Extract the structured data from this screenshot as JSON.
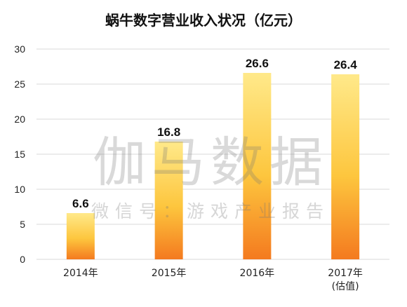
{
  "chart_data": {
    "type": "bar",
    "title": "蜗牛数字营业收入状况（亿元）",
    "categories": [
      "2014年",
      "2015年",
      "2016年",
      "2017年"
    ],
    "category_sublabels": [
      "",
      "",
      "",
      "(估值)"
    ],
    "values": [
      6.6,
      16.8,
      26.6,
      26.4
    ],
    "data_labels": [
      "6.6",
      "16.8",
      "26.6",
      "26.4"
    ],
    "yticks": [
      0,
      5,
      10,
      15,
      20,
      25,
      30
    ],
    "ylim": [
      0,
      30
    ],
    "grid": true,
    "colors": {
      "bar_top": "#FFE98A",
      "bar_mid": "#FDC63E",
      "bar_bottom": "#F47A1F"
    }
  },
  "watermark": {
    "main": "伽马数据",
    "sub": "微信号：游戏产业报告"
  }
}
